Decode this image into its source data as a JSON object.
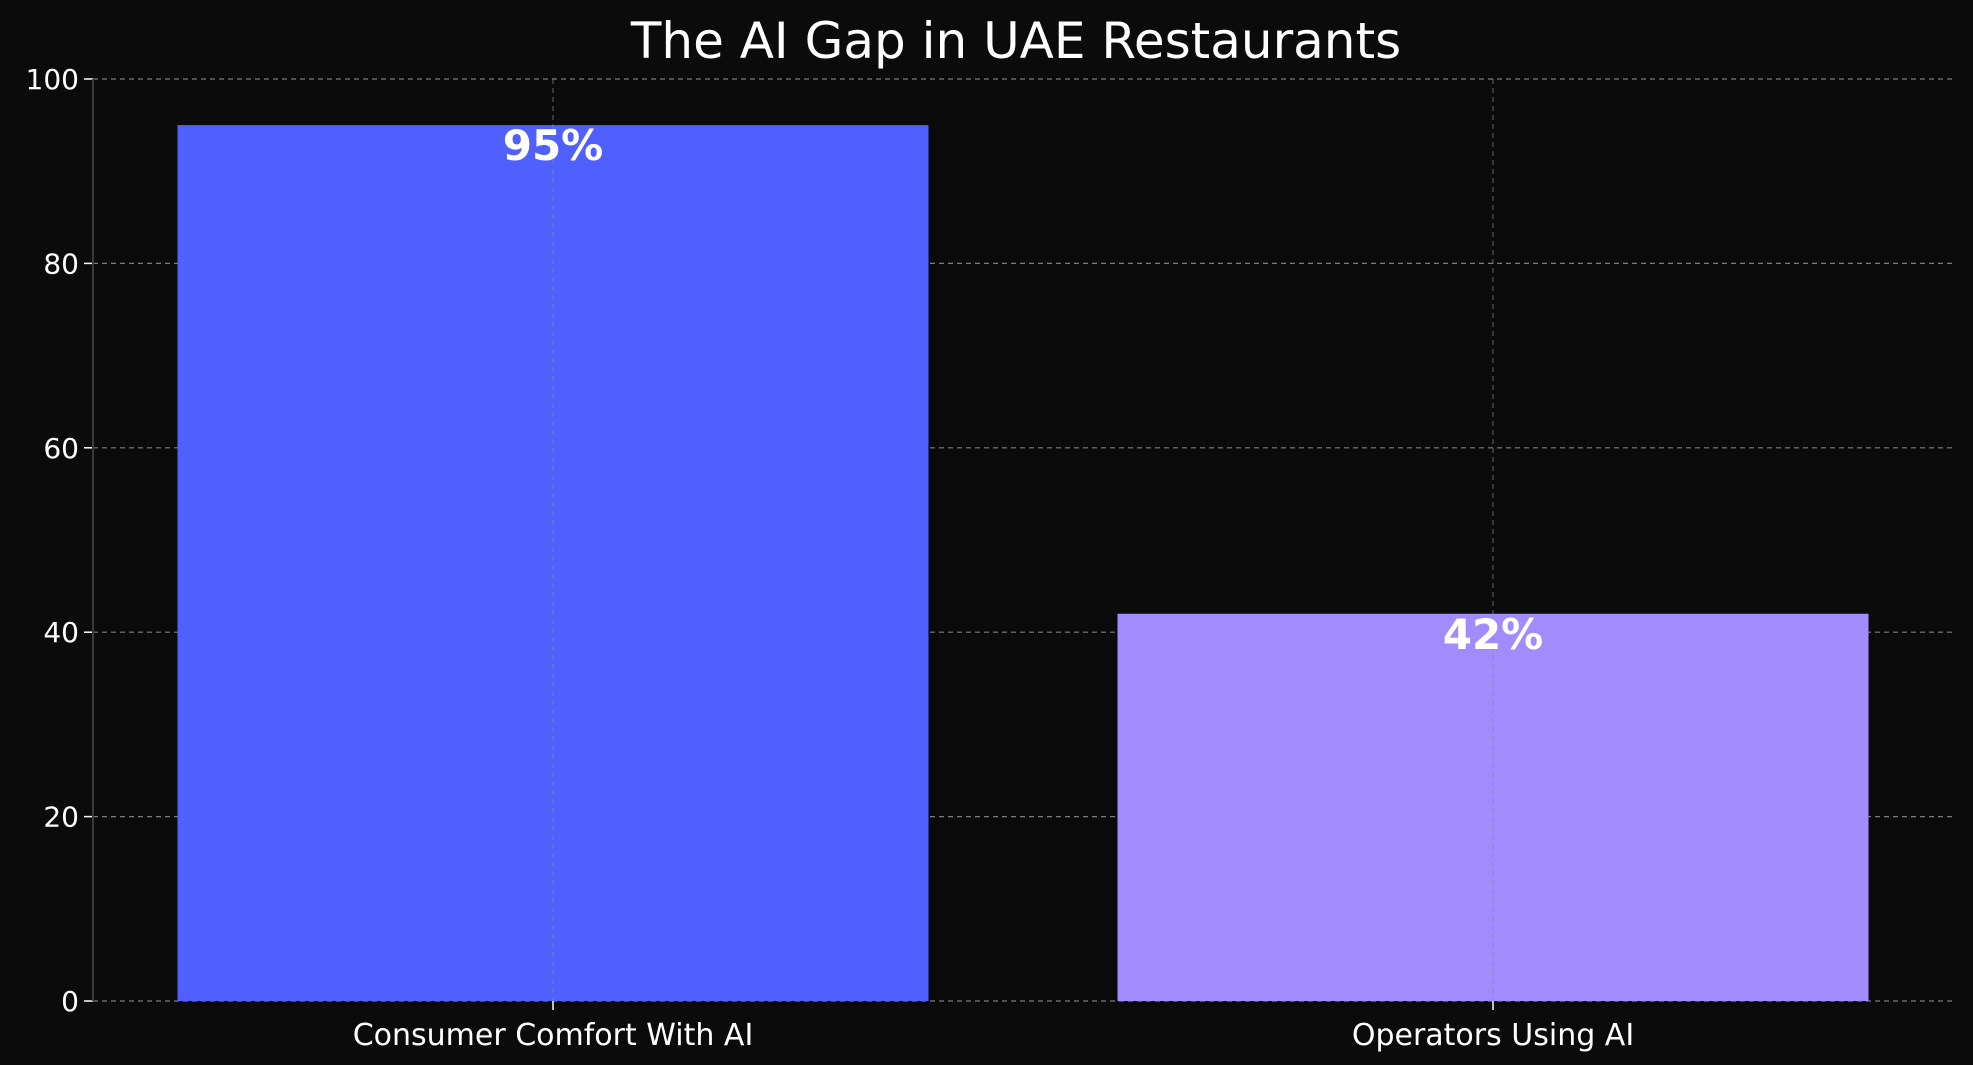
{
  "chart_data": {
    "type": "bar",
    "title": "The AI Gap in UAE Restaurants",
    "xlabel": "",
    "ylabel": "",
    "categories": [
      "Consumer Comfort With AI",
      "Operators Using AI"
    ],
    "values": [
      95,
      42
    ],
    "data_labels": [
      "95%",
      "42%"
    ],
    "bar_colors": [
      "#4f60ff",
      "#a18bfd"
    ],
    "ylim": [
      0,
      100
    ],
    "yticks": [
      0,
      20,
      40,
      60,
      80,
      100
    ],
    "ytick_labels": [
      "0",
      "20",
      "40",
      "60",
      "80",
      "100"
    ],
    "grid": true,
    "legend": "none"
  },
  "colors": {
    "background": "#0b0b0b",
    "text": "#ffffff",
    "grid": "#8a8a8a",
    "axis": "#3a3a3a"
  }
}
